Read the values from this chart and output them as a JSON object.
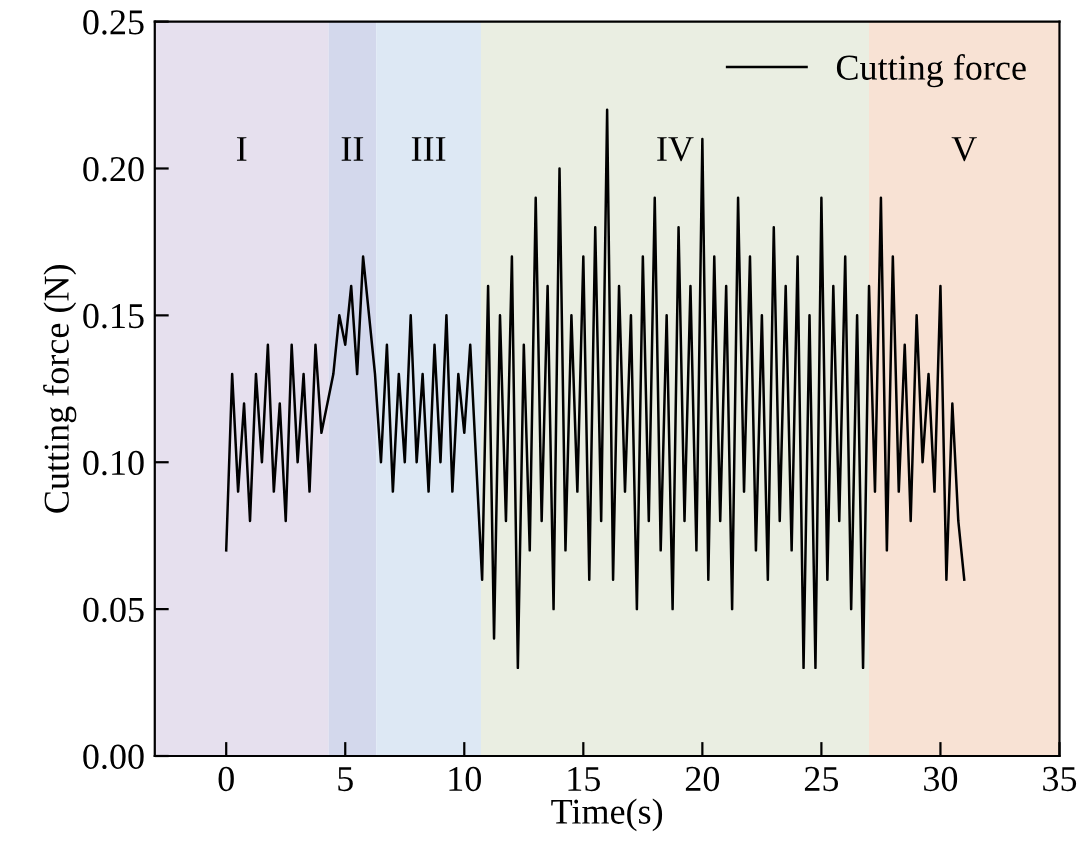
{
  "chart_data": {
    "type": "line",
    "xlabel": "Time(s)",
    "ylabel": "Cutting force (N)",
    "xlim": [
      -3,
      35
    ],
    "ylim": [
      0,
      0.25
    ],
    "xticks": [
      0,
      5,
      10,
      15,
      20,
      25,
      30,
      35
    ],
    "yticks": [
      {
        "value": 0,
        "label": "0.00"
      },
      {
        "value": 0.05,
        "label": "0.05"
      },
      {
        "value": 0.1,
        "label": "0.10"
      },
      {
        "value": 0.15,
        "label": "0.15"
      },
      {
        "value": 0.2,
        "label": "0.20"
      },
      {
        "value": 0.25,
        "label": "0.25"
      }
    ],
    "grid": false,
    "legend": "top right",
    "line_style": "solid",
    "marker": "none",
    "bands": [
      {
        "axis": "x",
        "from": -3,
        "to": 4.3,
        "color": "#e6e0ee",
        "label": "I"
      },
      {
        "axis": "x",
        "from": 4.3,
        "to": 6.3,
        "color": "#d3d8ec",
        "label": "II"
      },
      {
        "axis": "x",
        "from": 6.3,
        "to": 10.7,
        "color": "#dde8f4",
        "label": "III"
      },
      {
        "axis": "x",
        "from": 10.7,
        "to": 27,
        "color": "#eaeee2",
        "label": "IV"
      },
      {
        "axis": "x",
        "from": 27,
        "to": 35,
        "color": "#f8e2d4",
        "label": "V"
      }
    ],
    "series": [
      {
        "name": "Cutting force",
        "color": "#000000",
        "x": [
          0,
          0.25,
          0.5,
          0.75,
          1,
          1.25,
          1.5,
          1.75,
          2,
          2.25,
          2.5,
          2.75,
          3,
          3.25,
          3.5,
          3.75,
          4,
          4.25,
          4.5,
          4.75,
          5,
          5.25,
          5.5,
          5.75,
          6,
          6.25,
          6.5,
          6.75,
          7,
          7.25,
          7.5,
          7.75,
          8,
          8.25,
          8.5,
          8.75,
          9,
          9.25,
          9.5,
          9.75,
          10,
          10.25,
          10.5,
          10.75,
          11,
          11.25,
          11.5,
          11.75,
          12,
          12.25,
          12.5,
          12.75,
          13,
          13.25,
          13.5,
          13.75,
          14,
          14.25,
          14.5,
          14.75,
          15,
          15.25,
          15.5,
          15.75,
          16,
          16.25,
          16.5,
          16.75,
          17,
          17.25,
          17.5,
          17.75,
          18,
          18.25,
          18.5,
          18.75,
          19,
          19.25,
          19.5,
          19.75,
          20,
          20.25,
          20.5,
          20.75,
          21,
          21.25,
          21.5,
          21.75,
          22,
          22.25,
          22.5,
          22.75,
          23,
          23.25,
          23.5,
          23.75,
          24,
          24.25,
          24.5,
          24.75,
          25,
          25.25,
          25.5,
          25.75,
          26,
          26.25,
          26.5,
          26.75,
          27,
          27.25,
          27.5,
          27.75,
          28,
          28.25,
          28.5,
          28.75,
          29,
          29.25,
          29.5,
          29.75,
          30,
          30.25,
          30.5,
          30.75,
          31
        ],
        "values": [
          0.07,
          0.13,
          0.09,
          0.12,
          0.08,
          0.13,
          0.1,
          0.14,
          0.09,
          0.12,
          0.08,
          0.14,
          0.1,
          0.13,
          0.09,
          0.14,
          0.11,
          0.12,
          0.13,
          0.15,
          0.14,
          0.16,
          0.13,
          0.17,
          0.15,
          0.13,
          0.1,
          0.14,
          0.09,
          0.13,
          0.1,
          0.15,
          0.1,
          0.13,
          0.09,
          0.14,
          0.1,
          0.15,
          0.09,
          0.13,
          0.11,
          0.14,
          0.1,
          0.06,
          0.16,
          0.04,
          0.15,
          0.08,
          0.17,
          0.03,
          0.14,
          0.07,
          0.19,
          0.08,
          0.16,
          0.05,
          0.2,
          0.07,
          0.15,
          0.09,
          0.17,
          0.06,
          0.18,
          0.08,
          0.22,
          0.06,
          0.16,
          0.09,
          0.15,
          0.05,
          0.17,
          0.08,
          0.19,
          0.07,
          0.15,
          0.05,
          0.18,
          0.08,
          0.16,
          0.07,
          0.21,
          0.06,
          0.17,
          0.08,
          0.16,
          0.05,
          0.19,
          0.09,
          0.17,
          0.07,
          0.15,
          0.06,
          0.18,
          0.08,
          0.16,
          0.07,
          0.17,
          0.03,
          0.15,
          0.03,
          0.19,
          0.06,
          0.16,
          0.08,
          0.17,
          0.05,
          0.15,
          0.03,
          0.16,
          0.09,
          0.19,
          0.07,
          0.17,
          0.09,
          0.14,
          0.08,
          0.15,
          0.1,
          0.13,
          0.09,
          0.16,
          0.06,
          0.12,
          0.08,
          0.06
        ]
      }
    ]
  }
}
